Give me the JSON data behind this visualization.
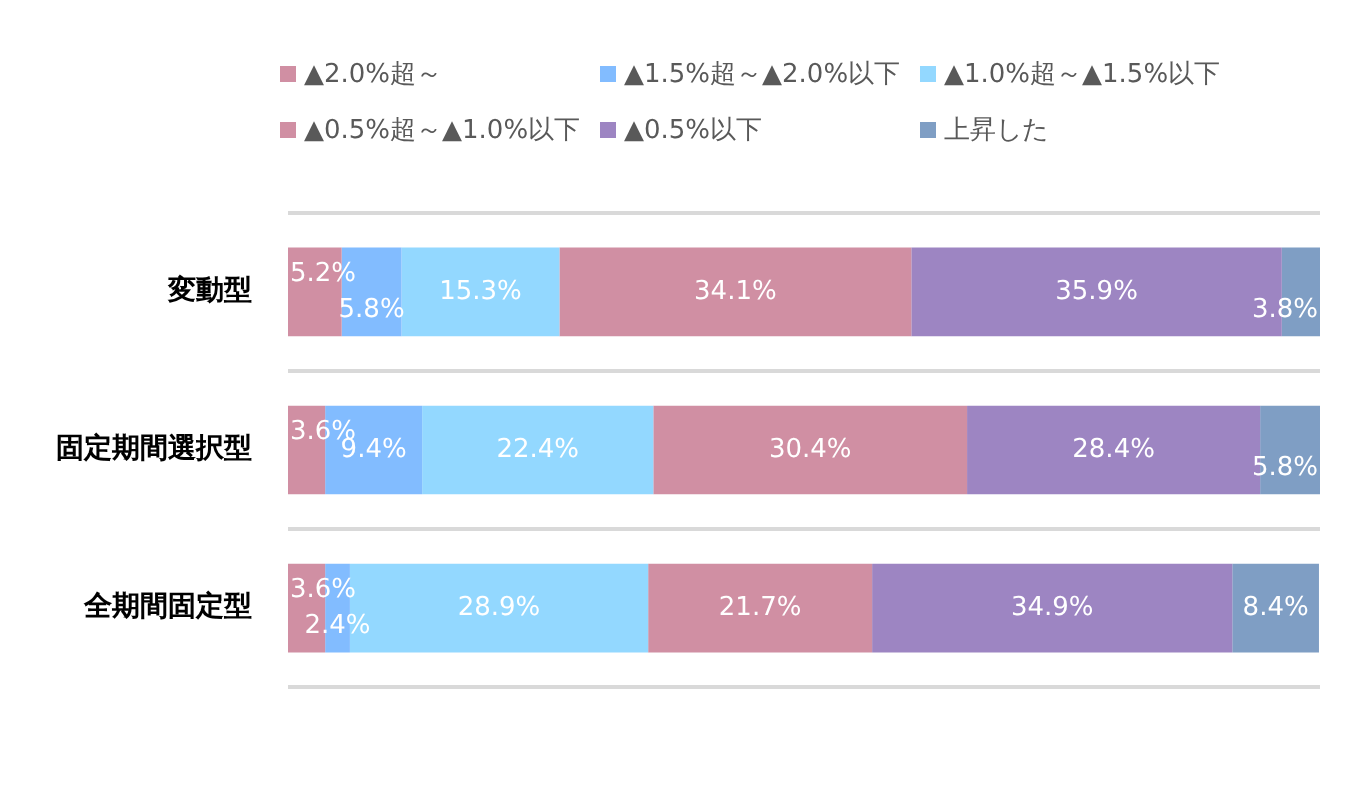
{
  "chart_data": {
    "type": "bar",
    "orientation": "horizontal",
    "stacked": true,
    "categories": [
      "変動型",
      "固定期間選択型",
      "全期間固定型"
    ],
    "xlim": [
      0,
      100
    ],
    "tick_labels": "y",
    "grid": "y",
    "legend": "top",
    "series": [
      {
        "name": "▲2.0%超～",
        "color": "#d08fa3",
        "values": [
          5.2,
          3.6,
          3.6
        ],
        "value_labels": [
          "5.2%",
          "3.6%",
          "3.6%"
        ]
      },
      {
        "name": "▲1.5%超～▲2.0%以下",
        "color": "#82bcff",
        "values": [
          5.8,
          9.4,
          2.4
        ],
        "value_labels": [
          "5.8%",
          "9.4%",
          "2.4%"
        ]
      },
      {
        "name": "▲1.0%超～▲1.5%以下",
        "color": "#93d8ff",
        "values": [
          15.3,
          22.4,
          28.9
        ],
        "value_labels": [
          "15.3%",
          "22.4%",
          "28.9%"
        ]
      },
      {
        "name": "▲0.5%超～▲1.0%以下",
        "color": "#d08fa3",
        "values": [
          34.1,
          30.4,
          21.7
        ],
        "value_labels": [
          "34.1%",
          "30.4%",
          "21.7%"
        ]
      },
      {
        "name": "▲0.5%以下",
        "color": "#9d85c2",
        "values": [
          35.9,
          28.4,
          34.9
        ],
        "value_labels": [
          "35.9%",
          "28.4%",
          "34.9%"
        ]
      },
      {
        "name": "上昇した",
        "color": "#7f9ec4",
        "values": [
          3.8,
          5.8,
          8.4
        ],
        "value_labels": [
          "3.8%",
          "5.8%",
          "8.4%"
        ]
      }
    ]
  }
}
